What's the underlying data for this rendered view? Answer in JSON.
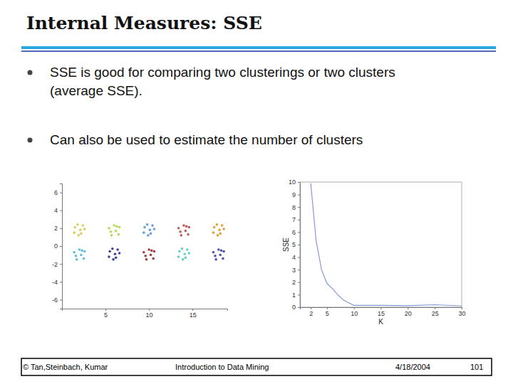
{
  "slide": {
    "title": "Internal Measures: SSE",
    "bullets": [
      [
        "SSE is good for comparing two clusterings or two clusters",
        "(average SSE)."
      ],
      [
        "Can also be used to estimate the number of clusters"
      ]
    ],
    "footer": [
      "© Tan,Steinbach, Kumar",
      "Introduction to Data Mining",
      "4/18/2004",
      "101"
    ]
  },
  "chart_data": [
    {
      "type": "scatter",
      "marker": "dot",
      "xlim": [
        0,
        19
      ],
      "ylim": [
        -7,
        7
      ],
      "xticks": [
        5,
        10,
        15
      ],
      "yticks": [
        -6,
        -4,
        -2,
        0,
        2,
        4,
        6
      ],
      "series": [
        {
          "color": "#d8d060",
          "x": [
            1.5,
            2.2,
            2.6,
            1.8,
            2.1,
            1.4,
            2.4,
            1.9
          ],
          "y": [
            2.1,
            1.4,
            1.9,
            2.4,
            1.8,
            1.5,
            2.3,
            1.2
          ]
        },
        {
          "color": "#b8d858",
          "x": [
            6.3,
            5.6,
            6.5,
            5.4,
            6.0,
            6.2,
            5.7,
            6.6
          ],
          "y": [
            2.2,
            1.6,
            1.3,
            2.0,
            2.3,
            1.7,
            1.2,
            2.1
          ]
        },
        {
          "color": "#6aa0dc",
          "x": [
            9.5,
            10.2,
            10.6,
            9.8,
            10.1,
            9.4,
            10.4,
            9.9
          ],
          "y": [
            2.1,
            1.4,
            1.9,
            2.4,
            1.8,
            1.5,
            2.3,
            1.2
          ]
        },
        {
          "color": "#c06060",
          "x": [
            14.3,
            13.6,
            14.5,
            13.4,
            14.0,
            14.2,
            13.7,
            14.6
          ],
          "y": [
            2.2,
            1.6,
            1.3,
            2.0,
            2.3,
            1.7,
            1.2,
            2.1
          ]
        },
        {
          "color": "#e0a040",
          "x": [
            17.5,
            18.2,
            18.6,
            17.8,
            18.1,
            17.4,
            18.4,
            17.9
          ],
          "y": [
            2.1,
            1.4,
            1.9,
            2.4,
            1.8,
            1.5,
            2.3,
            1.2
          ]
        },
        {
          "color": "#60c0e0",
          "x": [
            2.3,
            1.6,
            2.5,
            1.4,
            2.0,
            2.2,
            1.7,
            2.6
          ],
          "y": [
            -0.5,
            -1.1,
            -1.4,
            -0.7,
            -0.4,
            -1.0,
            -1.5,
            -0.6
          ]
        },
        {
          "color": "#404098",
          "x": [
            5.5,
            6.2,
            6.6,
            5.8,
            6.1,
            5.4,
            6.4,
            5.9
          ],
          "y": [
            -0.6,
            -1.3,
            -0.8,
            -0.3,
            -0.9,
            -1.2,
            -0.4,
            -1.5
          ]
        },
        {
          "color": "#a04040",
          "x": [
            10.3,
            9.6,
            10.5,
            9.4,
            10.0,
            10.2,
            9.7,
            10.6
          ],
          "y": [
            -0.5,
            -1.1,
            -1.4,
            -0.7,
            -0.4,
            -1.0,
            -1.5,
            -0.6
          ]
        },
        {
          "color": "#60d0c0",
          "x": [
            13.5,
            14.2,
            14.6,
            13.8,
            14.1,
            13.4,
            14.4,
            13.9
          ],
          "y": [
            -0.6,
            -1.3,
            -0.8,
            -0.3,
            -0.9,
            -1.2,
            -0.4,
            -1.5
          ]
        },
        {
          "color": "#5050b0",
          "x": [
            18.3,
            17.6,
            18.5,
            17.4,
            18.0,
            18.2,
            17.7,
            18.6
          ],
          "y": [
            -0.5,
            -1.1,
            -1.4,
            -0.7,
            -0.4,
            -1.0,
            -1.5,
            -0.6
          ]
        }
      ]
    },
    {
      "type": "line",
      "xlabel": "K",
      "ylabel": "SSE",
      "color": "#8898d8",
      "xlim": [
        0,
        30
      ],
      "ylim": [
        0,
        10
      ],
      "xticks": [
        2,
        5,
        10,
        15,
        20,
        25,
        30
      ],
      "yticks": [
        0,
        1,
        2,
        3,
        4,
        5,
        6,
        7,
        8,
        9,
        10
      ],
      "x": [
        2,
        3,
        4,
        5,
        6,
        7,
        8,
        9,
        10,
        15,
        20,
        25,
        30
      ],
      "values": [
        9.9,
        5.3,
        3.0,
        1.9,
        1.5,
        1.0,
        0.6,
        0.35,
        0.15,
        0.15,
        0.12,
        0.2,
        0.1
      ]
    }
  ]
}
